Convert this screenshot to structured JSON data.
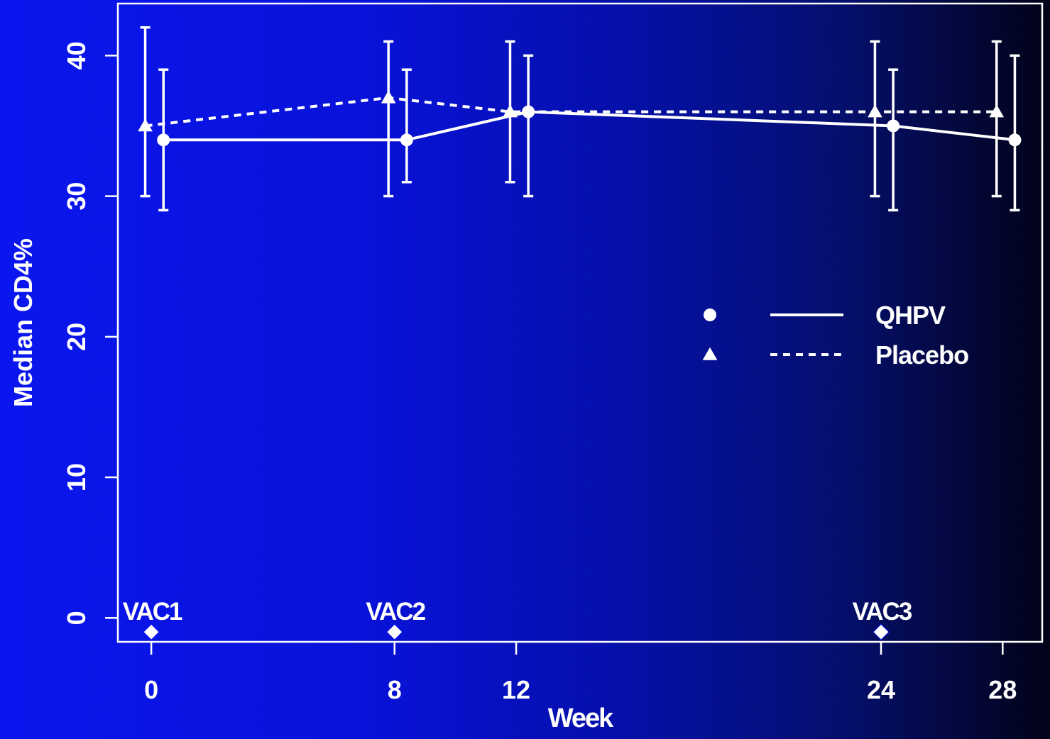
{
  "chart_data": {
    "type": "line",
    "title": "",
    "xlabel": "Week",
    "ylabel": "Median CD4%",
    "x_ticks": [
      0,
      8,
      12,
      24,
      28
    ],
    "y_ticks": [
      0,
      10,
      20,
      30,
      40
    ],
    "xlim": [
      -1.1,
      29.3
    ],
    "ylim": [
      -1.7,
      43.7
    ],
    "grid": false,
    "legend_position": "right-middle",
    "series": [
      {
        "name": "QHPV",
        "marker": "circle",
        "line_style": "solid",
        "x": [
          0.4,
          8.4,
          12.4,
          24.4,
          28.4
        ],
        "y": [
          34,
          34,
          36,
          35,
          34
        ],
        "err_low": [
          29,
          31,
          30,
          29,
          29
        ],
        "err_high": [
          39,
          39,
          40,
          39,
          40
        ]
      },
      {
        "name": "Placebo",
        "marker": "triangle",
        "line_style": "dashed",
        "x": [
          -0.2,
          7.8,
          11.8,
          23.8,
          27.8
        ],
        "y": [
          35,
          37,
          36,
          36,
          36
        ],
        "err_low": [
          30,
          30,
          31,
          30,
          30
        ],
        "err_high": [
          42,
          41,
          41,
          41,
          41
        ]
      }
    ],
    "annotations": [
      {
        "label": "VAC1",
        "x": 0,
        "y": -1
      },
      {
        "label": "VAC2",
        "x": 8,
        "y": -1
      },
      {
        "label": "VAC3",
        "x": 24,
        "y": -1
      }
    ],
    "colors": {
      "foreground": "#ffffff",
      "background_left": "#0a16ee",
      "background_right": "#020218"
    }
  }
}
